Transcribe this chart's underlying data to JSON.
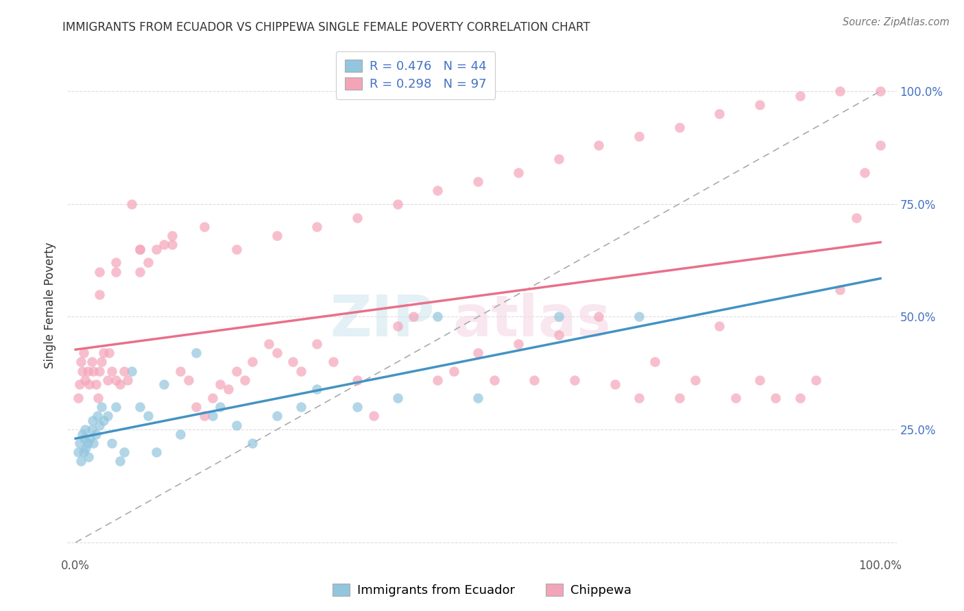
{
  "title": "IMMIGRANTS FROM ECUADOR VS CHIPPEWA SINGLE FEMALE POVERTY CORRELATION CHART",
  "source": "Source: ZipAtlas.com",
  "ylabel": "Single Female Poverty",
  "legend_blue_r": "R = 0.476",
  "legend_blue_n": "N = 44",
  "legend_pink_r": "R = 0.298",
  "legend_pink_n": "N = 97",
  "legend_label1": "Immigrants from Ecuador",
  "legend_label2": "Chippewa",
  "blue_color": "#92c5de",
  "pink_color": "#f4a4b8",
  "blue_line_color": "#4393c3",
  "pink_line_color": "#e8708a",
  "diagonal_color": "#aaaaaa",
  "background_color": "#ffffff",
  "grid_color": "#dddddd",
  "tick_color": "#4472c4",
  "title_color": "#333333",
  "blue_x": [
    0.3,
    0.5,
    0.7,
    0.8,
    1.0,
    1.1,
    1.2,
    1.3,
    1.5,
    1.6,
    1.8,
    2.0,
    2.1,
    2.2,
    2.5,
    2.7,
    3.0,
    3.2,
    3.5,
    4.0,
    4.5,
    5.0,
    5.5,
    6.0,
    7.0,
    8.0,
    9.0,
    10.0,
    11.0,
    13.0,
    15.0,
    17.0,
    18.0,
    20.0,
    22.0,
    25.0,
    28.0,
    30.0,
    35.0,
    40.0,
    45.0,
    50.0,
    60.0,
    70.0
  ],
  "blue_y": [
    20,
    22,
    18,
    24,
    20,
    23,
    25,
    21,
    22,
    19,
    23,
    25,
    27,
    22,
    24,
    28,
    26,
    30,
    27,
    28,
    22,
    30,
    18,
    20,
    38,
    30,
    28,
    20,
    35,
    24,
    42,
    28,
    30,
    26,
    22,
    28,
    30,
    34,
    30,
    32,
    50,
    32,
    50,
    50
  ],
  "pink_x": [
    0.3,
    0.5,
    0.7,
    0.8,
    1.0,
    1.2,
    1.5,
    1.7,
    2.0,
    2.2,
    2.5,
    2.8,
    3.0,
    3.2,
    3.5,
    4.0,
    4.2,
    4.5,
    5.0,
    5.5,
    6.0,
    6.5,
    7.0,
    8.0,
    9.0,
    10.0,
    11.0,
    12.0,
    13.0,
    14.0,
    15.0,
    16.0,
    17.0,
    18.0,
    19.0,
    20.0,
    21.0,
    22.0,
    24.0,
    25.0,
    27.0,
    28.0,
    30.0,
    32.0,
    35.0,
    37.0,
    40.0,
    42.0,
    45.0,
    47.0,
    50.0,
    52.0,
    55.0,
    57.0,
    60.0,
    62.0,
    65.0,
    67.0,
    70.0,
    72.0,
    75.0,
    77.0,
    80.0,
    82.0,
    85.0,
    87.0,
    90.0,
    92.0,
    95.0,
    97.0,
    98.0,
    100.0,
    3.0,
    5.0,
    8.0,
    12.0,
    16.0,
    20.0,
    25.0,
    30.0,
    35.0,
    40.0,
    45.0,
    50.0,
    55.0,
    60.0,
    65.0,
    70.0,
    75.0,
    80.0,
    85.0,
    90.0,
    95.0,
    100.0,
    3.0,
    5.0,
    8.0
  ],
  "pink_y": [
    32,
    35,
    40,
    38,
    42,
    36,
    38,
    35,
    40,
    38,
    35,
    32,
    38,
    40,
    42,
    36,
    42,
    38,
    36,
    35,
    38,
    36,
    75,
    60,
    62,
    65,
    66,
    68,
    38,
    36,
    30,
    28,
    32,
    35,
    34,
    38,
    36,
    40,
    44,
    42,
    40,
    38,
    44,
    40,
    36,
    28,
    48,
    50,
    36,
    38,
    42,
    36,
    44,
    36,
    46,
    36,
    50,
    35,
    32,
    40,
    32,
    36,
    48,
    32,
    36,
    32,
    32,
    36,
    56,
    72,
    82,
    88,
    55,
    60,
    65,
    66,
    70,
    65,
    68,
    70,
    72,
    75,
    78,
    80,
    82,
    85,
    88,
    90,
    92,
    95,
    97,
    99,
    100,
    100,
    60,
    62,
    65
  ]
}
